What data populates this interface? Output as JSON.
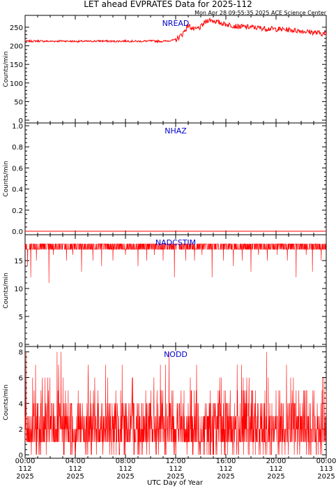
{
  "page": {
    "title": "LET ahead EVPRATES Data for 2025-112",
    "timestamp": "Mon Apr 28 09:55:35 2025 ACE Science Center",
    "xlabel": "UTC Day of Year"
  },
  "colors": {
    "series": "#ff0000",
    "panel_label": "#0000cc",
    "axes": "#000000",
    "background": "#ffffff"
  },
  "x_ticks": [
    {
      "time": "00:00",
      "day": "112",
      "year": "2025",
      "hours": 0
    },
    {
      "time": "04:00",
      "day": "112",
      "year": "2025",
      "hours": 4
    },
    {
      "time": "08:00",
      "day": "112",
      "year": "2025",
      "hours": 8
    },
    {
      "time": "12:00",
      "day": "112",
      "year": "2025",
      "hours": 12
    },
    {
      "time": "16:00",
      "day": "112",
      "year": "2025",
      "hours": 16
    },
    {
      "time": "20:00",
      "day": "112",
      "year": "2025",
      "hours": 20
    },
    {
      "time": "00:00",
      "day": "113",
      "year": "2025",
      "hours": 24
    }
  ],
  "chart_data": [
    {
      "type": "line",
      "panel_label": "NREAD",
      "ylabel": "Counts/min",
      "ylim": [
        0,
        280
      ],
      "yticks": [
        0,
        50,
        100,
        150,
        200,
        250
      ],
      "x_unit": "hours",
      "xlim": [
        0,
        24
      ],
      "series": [
        {
          "x": [
            0,
            1,
            2,
            3,
            4,
            5,
            6,
            7,
            8,
            9,
            10,
            11,
            11.5,
            12,
            12.5,
            13,
            13.5,
            14,
            14.3,
            14.6,
            15,
            15.5,
            16,
            17,
            18,
            19,
            20,
            21,
            22,
            23,
            24
          ],
          "values": [
            212,
            213,
            212,
            213,
            212,
            212,
            213,
            212,
            213,
            212,
            213,
            212,
            214,
            216,
            230,
            255,
            243,
            250,
            262,
            270,
            268,
            262,
            258,
            252,
            250,
            247,
            245,
            243,
            240,
            236,
            232
          ]
        }
      ]
    },
    {
      "type": "line",
      "panel_label": "NHAZ",
      "ylabel": "Counts/min",
      "ylim": [
        0,
        1.0
      ],
      "yticks": [
        0.0,
        0.2,
        0.4,
        0.6,
        0.8,
        1.0
      ],
      "x_unit": "hours",
      "xlim": [
        0,
        24
      ],
      "series": [
        {
          "x": [
            0,
            24
          ],
          "values": [
            0,
            0
          ]
        }
      ]
    },
    {
      "type": "line",
      "panel_label": "NADCSTIM",
      "ylabel": "Counts/min",
      "ylim": [
        0,
        19
      ],
      "yticks": [
        0,
        5,
        10,
        15
      ],
      "x_unit": "hours",
      "xlim": [
        0,
        24
      ],
      "baseline_level": 18,
      "series": [
        {
          "x": [
            0.2,
            0.45,
            0.9,
            1.9,
            2.25,
            3.3,
            3.8,
            4.5,
            5.4,
            6.1,
            7.0,
            8.0,
            9.0,
            9.7,
            10.3,
            11.0,
            11.9,
            12.8,
            13.5,
            14.1,
            14.9,
            15.8,
            16.6,
            17.3,
            18.0,
            18.6,
            19.3,
            20.1,
            20.9,
            21.6,
            22.4,
            22.9,
            23.6
          ],
          "values": [
            14,
            12,
            15,
            11,
            16,
            15,
            16,
            13,
            15,
            14,
            15,
            16,
            14,
            15,
            16,
            15,
            12,
            15,
            15,
            16,
            12,
            15,
            14,
            15,
            13,
            16,
            15,
            16,
            15,
            12,
            16,
            13,
            15
          ]
        }
      ]
    },
    {
      "type": "line",
      "panel_label": "NODD",
      "ylabel": "Counts/min",
      "ylim": [
        0,
        8.2
      ],
      "yticks": [
        0,
        2,
        4,
        6,
        8
      ],
      "x_unit": "hours",
      "xlim": [
        0,
        24
      ],
      "series": [
        {
          "x": [
            0,
            24
          ],
          "values": [
            2.5,
            2.5
          ],
          "description_level": "fluctuates 0–8 counts/min each minute"
        }
      ]
    }
  ]
}
